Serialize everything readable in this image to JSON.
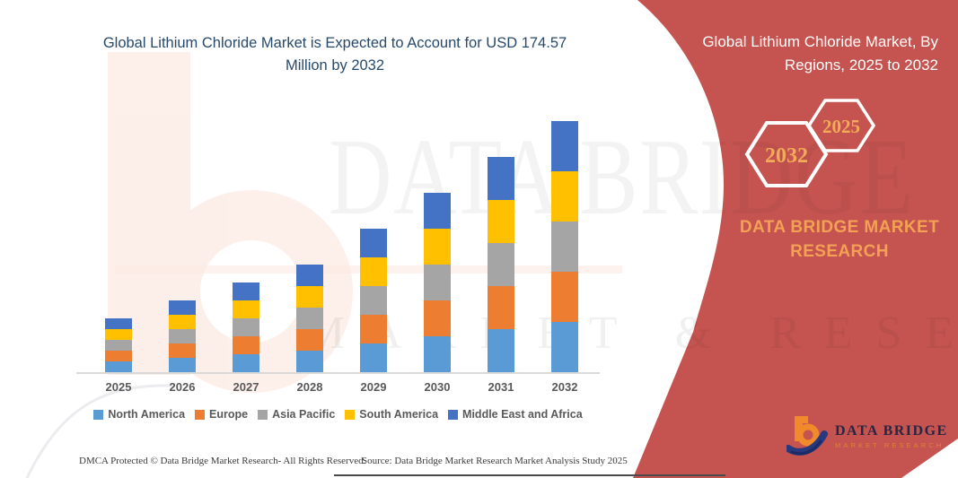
{
  "main_title": "Global Lithium Chloride Market is Expected to Account for USD 174.57 Million by 2032",
  "side_panel": {
    "title": "Global Lithium Chloride Market, By Regions, 2025 to 2032",
    "hexagons": [
      {
        "label": "2032"
      },
      {
        "label": "2025"
      }
    ],
    "brand_heading": "DATA BRIDGE MARKET RESEARCH"
  },
  "logo": {
    "name": "DATA BRIDGE",
    "tagline": "MARKET RESEARCH"
  },
  "watermark": {
    "line1": "DATA BRIDGE",
    "line2": "MARKET & RESEARCH"
  },
  "footer": {
    "left": "DMCA Protected © Data Bridge Market Research-  All Rights Reserved.",
    "right": "Source: Data Bridge Market Research  Market Analysis Study 2025"
  },
  "colors": {
    "panel_red": "#C5534F",
    "hex_text": "#F2AC58",
    "brand_orange": "#F2A155",
    "title_navy": "#27496b",
    "axis_gray": "#d9d9d9",
    "label_gray": "#595959"
  },
  "chart_data": {
    "type": "bar",
    "stacked": true,
    "unit": "USD Million",
    "title": "",
    "xlabel": "",
    "ylabel": "",
    "grid": false,
    "legend_position": "bottom",
    "categories": [
      "2025",
      "2026",
      "2027",
      "2028",
      "2029",
      "2030",
      "2031",
      "2032"
    ],
    "totals_usd_million": [
      37.5,
      50.0,
      63.8,
      75.7,
      99.5,
      124.5,
      149.5,
      174.57
    ],
    "final_year_total_usd_million": 174.57,
    "series": [
      {
        "name": "North America",
        "color": "#5B9BD5",
        "values": [
          7.5,
          10.0,
          12.8,
          15.1,
          19.9,
          24.9,
          29.9,
          34.9
        ]
      },
      {
        "name": "Europe",
        "color": "#ED7D31",
        "values": [
          7.5,
          10.0,
          12.8,
          15.1,
          19.9,
          24.9,
          29.9,
          34.9
        ]
      },
      {
        "name": "Asia Pacific",
        "color": "#A5A5A5",
        "values": [
          7.5,
          10.0,
          12.8,
          15.1,
          19.9,
          24.9,
          29.9,
          34.9
        ]
      },
      {
        "name": "South America",
        "color": "#FFC000",
        "values": [
          7.5,
          10.0,
          12.8,
          15.1,
          19.9,
          24.9,
          29.9,
          34.9
        ]
      },
      {
        "name": "Middle East and Africa",
        "color": "#4472C4",
        "values": [
          7.5,
          10.0,
          12.8,
          15.1,
          19.9,
          24.9,
          29.9,
          34.97
        ]
      }
    ]
  }
}
